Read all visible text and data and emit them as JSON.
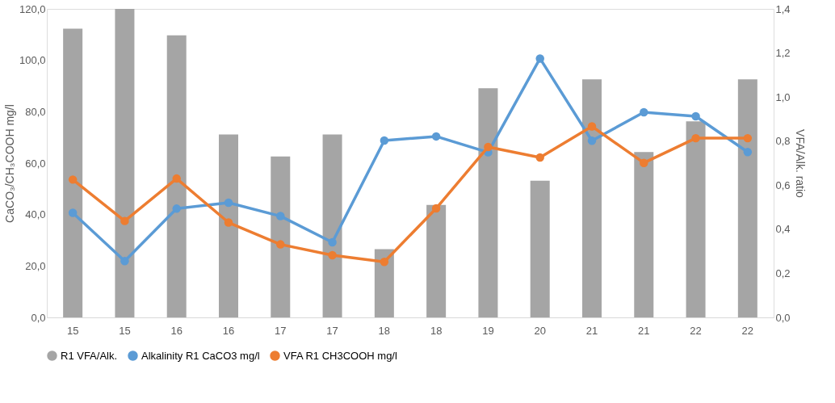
{
  "chart_data": {
    "type": "bar",
    "ylabel": "CaCO₃/CH₃COOH mg/l",
    "y2label": "VFA/Alk. ratio",
    "categories": [
      "15",
      "15",
      "16",
      "16",
      "17",
      "17",
      "18",
      "18",
      "19",
      "20",
      "21",
      "21",
      "22",
      "22"
    ],
    "series": [
      {
        "name": "R1 VFA/Alk.",
        "axis": "y2",
        "color": "#a5a5a5",
        "values": [
          1.31,
          1.4,
          1.28,
          0.83,
          0.73,
          0.83,
          0.31,
          0.51,
          1.04,
          0.62,
          1.08,
          0.75,
          0.89,
          1.08
        ]
      },
      {
        "name": "Alkalinity R1 CaCO3 mg/l",
        "type": "line",
        "color": "#5b9bd5",
        "values": [
          40.7,
          21.9,
          42.3,
          44.6,
          39.4,
          29.2,
          68.8,
          70.4,
          64.2,
          100.7,
          68.7,
          79.8,
          78.2,
          64.3
        ]
      },
      {
        "name": "VFA R1 CH3COOH mg/l",
        "type": "line",
        "color": "#ed7d31",
        "values": [
          53.6,
          37.5,
          54.0,
          36.9,
          28.4,
          24.2,
          21.6,
          42.4,
          66.3,
          62.2,
          74.3,
          60.1,
          69.7,
          69.7
        ]
      }
    ],
    "ylim": [
      0,
      120
    ],
    "yticks": [
      {
        "value": 0,
        "label": "0,0"
      },
      {
        "value": 20,
        "label": "20,0"
      },
      {
        "value": 40,
        "label": "40,0"
      },
      {
        "value": 60,
        "label": "60,0"
      },
      {
        "value": 80,
        "label": "80,0"
      },
      {
        "value": 100,
        "label": "100,0"
      },
      {
        "value": 120,
        "label": "120,0"
      }
    ],
    "y2lim": [
      0,
      1.4
    ],
    "y2ticks": [
      {
        "value": 0,
        "label": "0,0"
      },
      {
        "value": 0.2,
        "label": "0,2"
      },
      {
        "value": 0.4,
        "label": "0,4"
      },
      {
        "value": 0.6,
        "label": "0,6"
      },
      {
        "value": 0.8,
        "label": "0,8"
      },
      {
        "value": 1.0,
        "label": "1,0"
      },
      {
        "value": 1.2,
        "label": "1,2"
      },
      {
        "value": 1.4,
        "label": "1,4"
      }
    ],
    "legend": "bottom",
    "marker": "circle",
    "line_style": "solid",
    "grid": false
  }
}
